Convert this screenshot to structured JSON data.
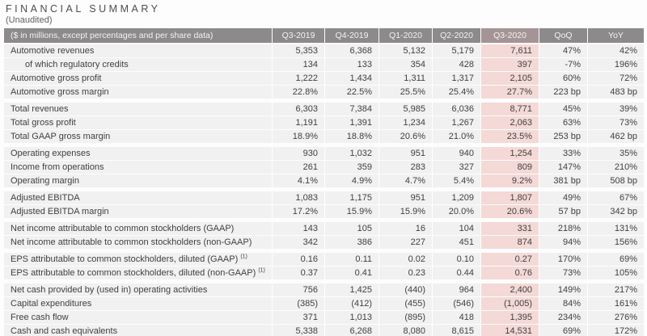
{
  "title": "FINANCIAL SUMMARY",
  "subtitle": "(Unaudited)",
  "colors": {
    "header_bg": "#8c8a8b",
    "header_text": "#f4f3f3",
    "header_highlight_bg": "#a59496",
    "row_bg": "#f2f1f1",
    "highlight_bg": "#f4d9d7",
    "text": "#404040"
  },
  "table": {
    "columns": [
      "($ in millions, except percentages and per share data)",
      "Q3-2019",
      "Q4-2019",
      "Q1-2020",
      "Q2-2020",
      "Q3-2020",
      "QoQ",
      "YoY"
    ],
    "highlight_column": "Q3-2020",
    "sections": [
      {
        "rows": [
          {
            "label": "Automotive revenues",
            "values": [
              "5,353",
              "6,368",
              "5,132",
              "5,179",
              "7,611",
              "47%",
              "42%"
            ]
          },
          {
            "label": "of which regulatory credits",
            "indent": true,
            "values": [
              "134",
              "133",
              "354",
              "428",
              "397",
              "-7%",
              "196%"
            ]
          },
          {
            "label": "Automotive gross profit",
            "values": [
              "1,222",
              "1,434",
              "1,311",
              "1,317",
              "2,105",
              "60%",
              "72%"
            ]
          },
          {
            "label": "Automotive gross margin",
            "values": [
              "22.8%",
              "22.5%",
              "25.5%",
              "25.4%",
              "27.7%",
              "223 bp",
              "483 bp"
            ]
          }
        ]
      },
      {
        "rows": [
          {
            "label": "Total revenues",
            "values": [
              "6,303",
              "7,384",
              "5,985",
              "6,036",
              "8,771",
              "45%",
              "39%"
            ]
          },
          {
            "label": "Total gross profit",
            "values": [
              "1,191",
              "1,391",
              "1,234",
              "1,267",
              "2,063",
              "63%",
              "73%"
            ]
          },
          {
            "label": "Total GAAP gross margin",
            "values": [
              "18.9%",
              "18.8%",
              "20.6%",
              "21.0%",
              "23.5%",
              "253 bp",
              "462 bp"
            ]
          }
        ]
      },
      {
        "rows": [
          {
            "label": "Operating expenses",
            "values": [
              "930",
              "1,032",
              "951",
              "940",
              "1,254",
              "33%",
              "35%"
            ]
          },
          {
            "label": "Income from operations",
            "values": [
              "261",
              "359",
              "283",
              "327",
              "809",
              "147%",
              "210%"
            ]
          },
          {
            "label": "Operating margin",
            "values": [
              "4.1%",
              "4.9%",
              "4.7%",
              "5.4%",
              "9.2%",
              "381 bp",
              "508 bp"
            ]
          }
        ]
      },
      {
        "rows": [
          {
            "label": "Adjusted EBITDA",
            "values": [
              "1,083",
              "1,175",
              "951",
              "1,209",
              "1,807",
              "49%",
              "67%"
            ]
          },
          {
            "label": "Adjusted EBITDA margin",
            "values": [
              "17.2%",
              "15.9%",
              "15.9%",
              "20.0%",
              "20.6%",
              "57 bp",
              "342 bp"
            ]
          }
        ]
      },
      {
        "rows": [
          {
            "label": "Net income attributable to common stockholders (GAAP)",
            "values": [
              "143",
              "105",
              "16",
              "104",
              "331",
              "218%",
              "131%"
            ]
          },
          {
            "label": "Net income attributable to common stockholders (non-GAAP)",
            "values": [
              "342",
              "386",
              "227",
              "451",
              "874",
              "94%",
              "156%"
            ]
          }
        ]
      },
      {
        "rows": [
          {
            "label": "EPS attributable to common stockholders, diluted (GAAP)",
            "footnote": "(1)",
            "values": [
              "0.16",
              "0.11",
              "0.02",
              "0.10",
              "0.27",
              "170%",
              "69%"
            ]
          },
          {
            "label": "EPS attributable to common stockholders, diluted (non-GAAP)",
            "footnote": "(1)",
            "values": [
              "0.37",
              "0.41",
              "0.23",
              "0.44",
              "0.76",
              "73%",
              "105%"
            ]
          }
        ]
      },
      {
        "rows": [
          {
            "label": "Net cash provided by (used in) operating activities",
            "values": [
              "756",
              "1,425",
              "(440)",
              "964",
              "2,400",
              "149%",
              "217%"
            ]
          },
          {
            "label": "Capital expenditures",
            "values": [
              "(385)",
              "(412)",
              "(455)",
              "(546)",
              "(1,005)",
              "84%",
              "161%"
            ]
          },
          {
            "label": "Free cash flow",
            "values": [
              "371",
              "1,013",
              "(895)",
              "418",
              "1,395",
              "234%",
              "276%"
            ]
          },
          {
            "label": "Cash and cash equivalents",
            "values": [
              "5,338",
              "6,268",
              "8,080",
              "8,615",
              "14,531",
              "69%",
              "172%"
            ]
          }
        ]
      }
    ]
  }
}
